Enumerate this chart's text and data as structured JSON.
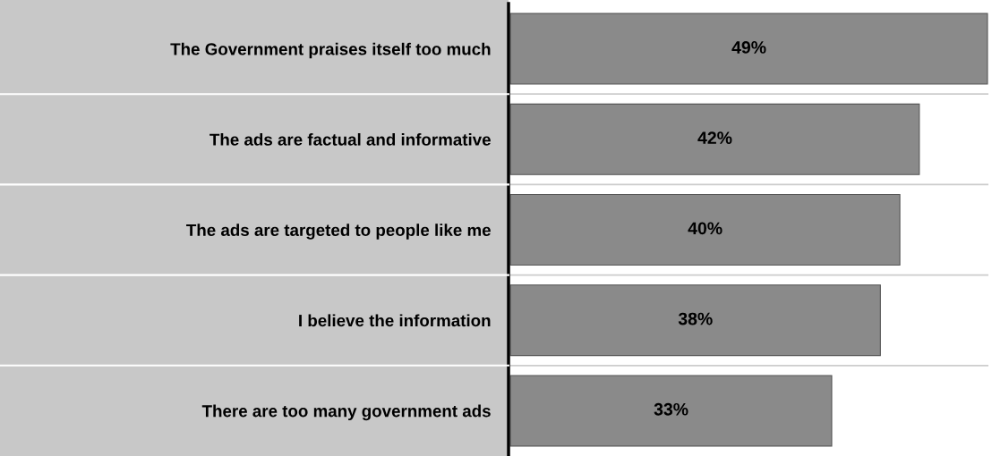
{
  "chart_data": {
    "type": "bar",
    "orientation": "horizontal",
    "categories": [
      "The Government praises itself too much",
      "The ads are factual and informative",
      "The ads are targeted to people like me",
      "I believe the information",
      "There are too many government ads"
    ],
    "values": [
      49,
      42,
      40,
      38,
      33
    ],
    "color": "#8a8a8a",
    "value_labels": [
      "49%",
      "42%",
      "40%",
      "38%",
      "33%"
    ],
    "tick_labels": "y",
    "grid": false,
    "legend": false
  }
}
